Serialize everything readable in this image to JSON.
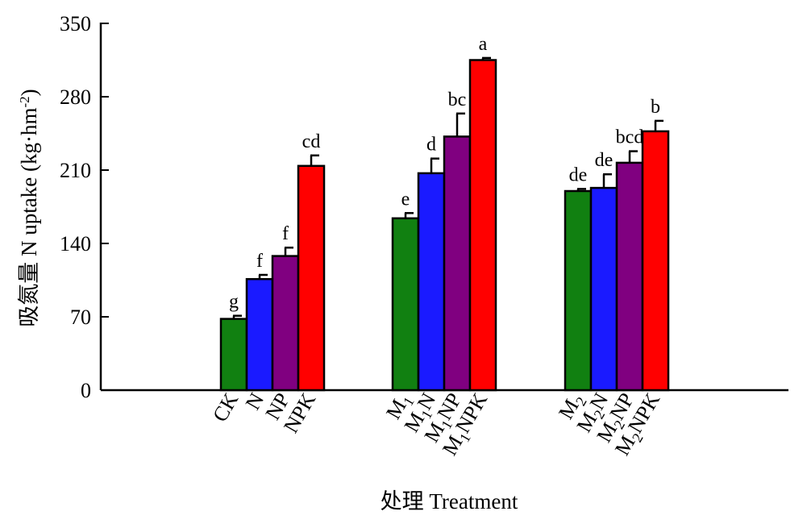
{
  "chart_data": {
    "type": "bar",
    "title": "",
    "xlabel": "处理 Treatment",
    "ylabel_main": "吸氮量 N uptake (kg·hm",
    "ylabel_sup": "-2",
    "ylabel_end": ")",
    "ylim": [
      0,
      350
    ],
    "yticks": [
      0,
      70,
      140,
      210,
      280,
      350
    ],
    "series_colors": [
      "#118011",
      "#1a1aff",
      "#800080",
      "#ff0000"
    ],
    "groups": [
      {
        "bars": [
          {
            "label": "CK",
            "label_parts": [
              {
                "t": "CK"
              }
            ],
            "value": 68,
            "error": 3,
            "sig": "g"
          },
          {
            "label": "N",
            "label_parts": [
              {
                "t": "N"
              }
            ],
            "value": 106,
            "error": 4,
            "sig": "f"
          },
          {
            "label": "NP",
            "label_parts": [
              {
                "t": "NP"
              }
            ],
            "value": 128,
            "error": 8,
            "sig": "f"
          },
          {
            "label": "NPK",
            "label_parts": [
              {
                "t": "NPK"
              }
            ],
            "value": 214,
            "error": 10,
            "sig": "cd"
          }
        ]
      },
      {
        "bars": [
          {
            "label": "M1",
            "label_parts": [
              {
                "t": "M"
              },
              {
                "t": "1",
                "sub": true
              }
            ],
            "value": 164,
            "error": 5,
            "sig": "e"
          },
          {
            "label": "M1N",
            "label_parts": [
              {
                "t": "M"
              },
              {
                "t": "1",
                "sub": true
              },
              {
                "t": "N"
              }
            ],
            "value": 207,
            "error": 14,
            "sig": "d"
          },
          {
            "label": "M1NP",
            "label_parts": [
              {
                "t": "M"
              },
              {
                "t": "1",
                "sub": true
              },
              {
                "t": "NP"
              }
            ],
            "value": 242,
            "error": 22,
            "sig": "bc"
          },
          {
            "label": "M1NPK",
            "label_parts": [
              {
                "t": "M"
              },
              {
                "t": "1",
                "sub": true
              },
              {
                "t": "NPK"
              }
            ],
            "value": 315,
            "error": 2,
            "sig": "a"
          }
        ]
      },
      {
        "bars": [
          {
            "label": "M2",
            "label_parts": [
              {
                "t": "M"
              },
              {
                "t": "2",
                "sub": true
              }
            ],
            "value": 190,
            "error": 2,
            "sig": "de"
          },
          {
            "label": "M2N",
            "label_parts": [
              {
                "t": "M"
              },
              {
                "t": "2",
                "sub": true
              },
              {
                "t": "N"
              }
            ],
            "value": 193,
            "error": 13,
            "sig": "de"
          },
          {
            "label": "M2NP",
            "label_parts": [
              {
                "t": "M"
              },
              {
                "t": "2",
                "sub": true
              },
              {
                "t": "NP"
              }
            ],
            "value": 217,
            "error": 11,
            "sig": "bcd"
          },
          {
            "label": "M2NPK",
            "label_parts": [
              {
                "t": "M"
              },
              {
                "t": "2",
                "sub": true
              },
              {
                "t": "NPK"
              }
            ],
            "value": 247,
            "error": 10,
            "sig": "b"
          }
        ]
      }
    ]
  }
}
